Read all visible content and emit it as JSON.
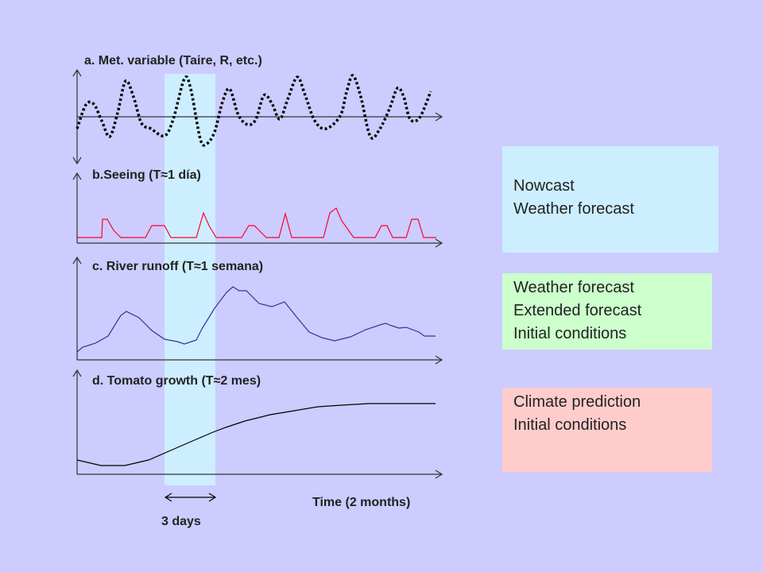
{
  "panels": [
    {
      "title": "a. Met. variable (Taire, R, etc.)"
    },
    {
      "title_prefix": "b.Seeing (T",
      "title_approx": "≈",
      "title_suffix": "1 día)"
    },
    {
      "title_prefix": "c. River runoff (T",
      "title_approx": "≈",
      "title_suffix": "1 semana)"
    },
    {
      "title_prefix": "d. Tomato growth (T",
      "title_approx": "≈",
      "title_suffix": "2 mes)"
    }
  ],
  "boxes": [
    {
      "lines": [
        "Nowcast",
        "Weather forecast"
      ],
      "color": "#cceeff"
    },
    {
      "lines": [
        "Weather forecast",
        "Extended forecast",
        "Initial conditions"
      ],
      "color": "#ccffcc"
    },
    {
      "lines": [
        "Climate prediction",
        "Initial conditions"
      ],
      "color": "#ffcccc"
    }
  ],
  "time_label": "Time (2 months)",
  "span_label": "3 days",
  "colors": {
    "background": "#ccccff",
    "highlight": "#cceeff",
    "met_variable": "#000000",
    "seeing": "#ff0033",
    "runoff": "#333399",
    "tomato": "#000000"
  }
}
